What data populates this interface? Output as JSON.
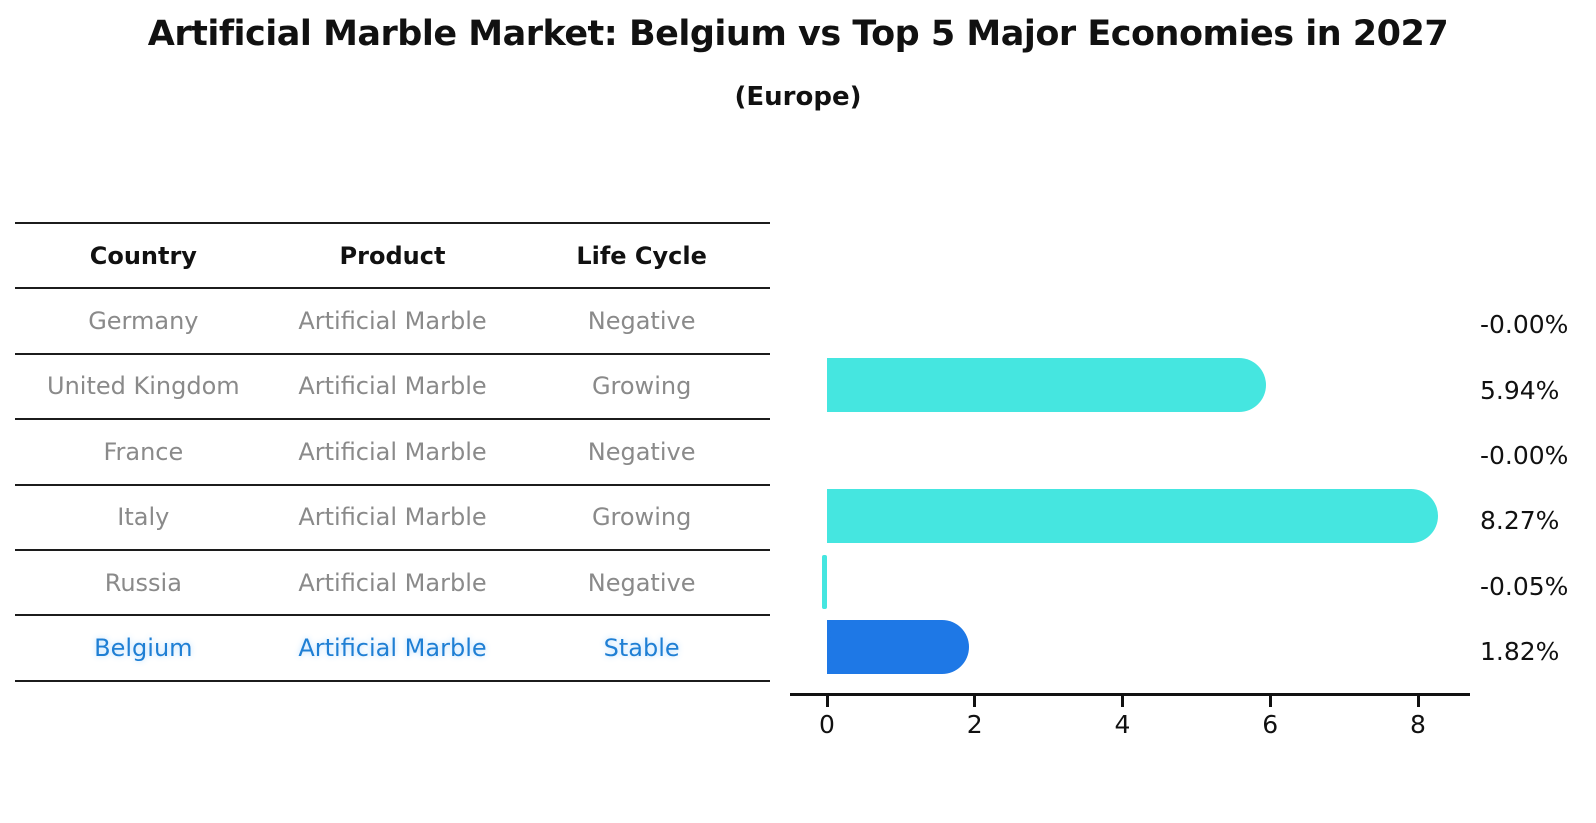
{
  "title": "Artificial Marble Market: Belgium vs Top 5 Major Economies in 2027",
  "subtitle": "(Europe)",
  "table": {
    "headers": {
      "country": "Country",
      "product": "Product",
      "life_cycle": "Life Cycle"
    },
    "rows": [
      {
        "country": "Germany",
        "product": "Artificial Marble",
        "life_cycle": "Negative",
        "highlight": false
      },
      {
        "country": "United Kingdom",
        "product": "Artificial Marble",
        "life_cycle": "Growing",
        "highlight": false
      },
      {
        "country": "France",
        "product": "Artificial Marble",
        "life_cycle": "Negative",
        "highlight": false
      },
      {
        "country": "Italy",
        "product": "Artificial Marble",
        "life_cycle": "Growing",
        "highlight": false
      },
      {
        "country": "Russia",
        "product": "Artificial Marble",
        "life_cycle": "Negative",
        "highlight": false
      },
      {
        "country": "Belgium",
        "product": "Artificial Marble",
        "life_cycle": "Stable",
        "highlight": true
      }
    ]
  },
  "chart_data": {
    "type": "bar",
    "orientation": "horizontal",
    "title": "Artificial Marble Market: Belgium vs Top 5 Major Economies in 2027 (Europe)",
    "categories": [
      "Germany",
      "United Kingdom",
      "France",
      "Italy",
      "Russia",
      "Belgium"
    ],
    "values": [
      -0.0,
      5.94,
      -0.0,
      8.27,
      -0.05,
      1.82
    ],
    "value_labels": [
      "-0.00%",
      "5.94%",
      "-0.00%",
      "8.27%",
      "-0.05%",
      "1.82%"
    ],
    "x_ticks": [
      0,
      2,
      4,
      6,
      8
    ],
    "xlim": [
      0,
      8.7
    ],
    "grid": false,
    "legend": false,
    "bar_color": "#45E6E0",
    "highlight_bar_color": "#1E78E6",
    "highlight_text_color": "#1F7FD4",
    "highlight_index": 5,
    "axis_color": "#111111"
  }
}
